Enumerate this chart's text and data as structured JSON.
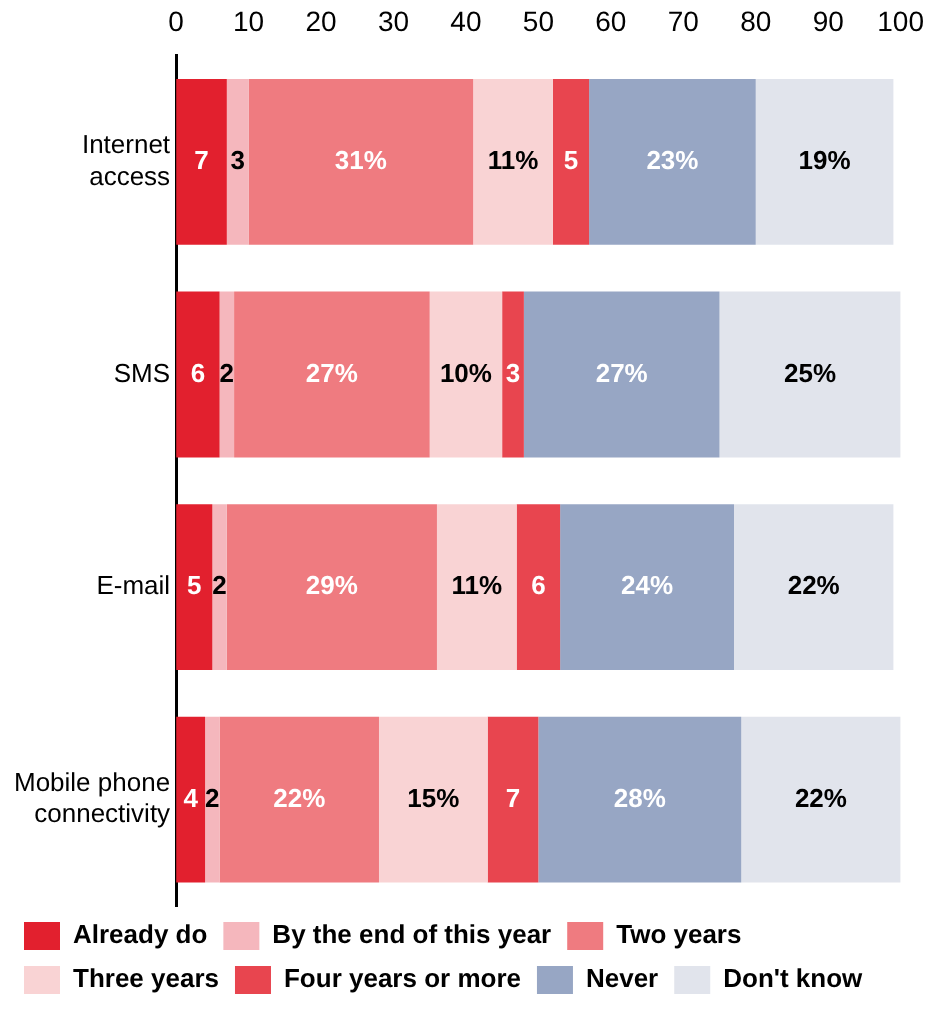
{
  "chart_data": {
    "type": "bar",
    "orientation": "horizontal",
    "stacked": true,
    "categories": [
      "Internet access",
      "SMS",
      "E-mail",
      "Mobile phone connectivity"
    ],
    "xlim": [
      0,
      100
    ],
    "xticks": [
      0,
      10,
      20,
      30,
      40,
      50,
      60,
      70,
      80,
      90,
      100
    ],
    "grid": false,
    "legend": "bottom",
    "series": [
      {
        "name": "Already do",
        "color": "#e2202e",
        "values": [
          7,
          6,
          5,
          4
        ],
        "value_labels": [
          "7",
          "6",
          "5",
          "4"
        ]
      },
      {
        "name": "By the end of this year",
        "color": "#f5b7bd",
        "values": [
          3,
          2,
          2,
          2
        ],
        "value_labels": [
          "3",
          "2",
          "2",
          "2"
        ]
      },
      {
        "name": "Two years",
        "color": "#ef7b80",
        "values": [
          31,
          27,
          29,
          22
        ],
        "value_labels": [
          "31%",
          "27%",
          "29%",
          "22%"
        ]
      },
      {
        "name": "Three years",
        "color": "#f9d3d4",
        "values": [
          11,
          10,
          11,
          15
        ],
        "value_labels": [
          "11%",
          "10%",
          "11%",
          "15%"
        ]
      },
      {
        "name": "Four years or more",
        "color": "#e8454f",
        "values": [
          5,
          3,
          6,
          7
        ],
        "value_labels": [
          "5",
          "3",
          "6",
          "7"
        ]
      },
      {
        "name": "Never",
        "color": "#97a6c4",
        "values": [
          23,
          27,
          24,
          28
        ],
        "value_labels": [
          "23%",
          "27%",
          "24%",
          "28%"
        ]
      },
      {
        "name": "Don't know",
        "color": "#e1e4ec",
        "values": [
          19,
          25,
          22,
          22
        ],
        "value_labels": [
          "19%",
          "25%",
          "22%",
          "22%"
        ]
      }
    ]
  }
}
